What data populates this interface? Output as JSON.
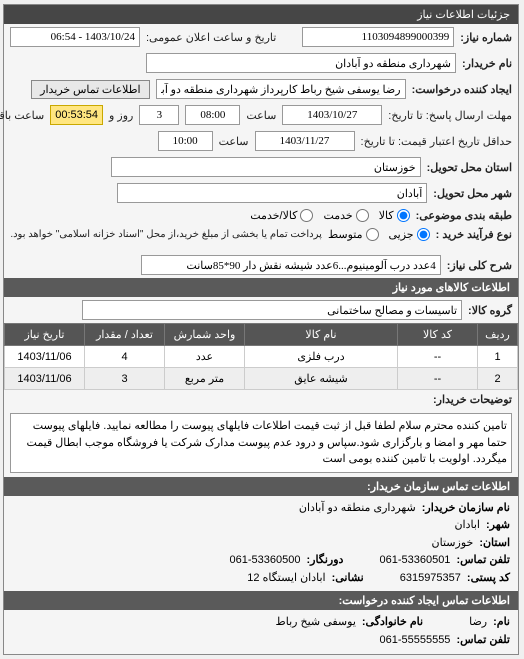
{
  "panel_title": "جزئیات اطلاعات نیاز",
  "header": {
    "need_number_label": "شماره نیاز:",
    "need_number": "1103094899000399",
    "announce_label": "تاریخ و ساعت اعلان عمومی:",
    "announce_value": "1403/10/24 - 06:54",
    "buyer_label": "نام خریدار:",
    "buyer_value": "شهرداری منطقه دو آبادان",
    "requester_label": "ایجاد کننده درخواست:",
    "requester_value": "رضا یوسفی شیخ رباط کارپرداز شهرداری منطقه دو آبادان",
    "contact_btn": "اطلاعات تماس خریدار",
    "deadline_label": "مهلت ارسال پاسخ: تا تاریخ:",
    "deadline_date": "1403/10/27",
    "time_label": "ساعت",
    "deadline_time": "08:00",
    "days_remaining": "3",
    "days_label": "روز و",
    "time_remaining": "00:53:54",
    "time_remaining_label": "ساعت باقی مانده",
    "min_deadline_label": "حداقل تاریخ اعتبار قیمت: تا تاریخ:",
    "min_deadline_date": "1403/11/27",
    "min_deadline_time": "10:00",
    "province_label": "استان محل تحویل:",
    "province_value": "خوزستان",
    "city_label": "شهر محل تحویل:",
    "city_value": "آبادان",
    "package_label": "طبقه بندی موضوعی:",
    "radio_all": "کالا",
    "radio_service": "خدمت",
    "radio_both": "کالا/خدمت",
    "process_label": "نوع فرآیند خرید :",
    "radio_cash": "جزیی",
    "radio_medium": "متوسط",
    "process_note": "پرداخت تمام یا بخشی از مبلغ خرید،از محل \"اسناد خزانه اسلامی\" خواهد بود."
  },
  "need_title_label": "شرح کلی نیاز:",
  "need_title_value": "4عدد درب آلومینیوم...6عدد شیشه نقش دار 90*85سانت",
  "goods_section": "اطلاعات کالاهای مورد نیاز",
  "group_label": "گروه کالا:",
  "group_value": "تاسیسات و مصالح ساختمانی",
  "table": {
    "columns": [
      "ردیف",
      "کد کالا",
      "نام کالا",
      "واحد شمارش",
      "تعداد / مقدار",
      "تاریخ نیاز"
    ],
    "rows": [
      [
        "1",
        "--",
        "درب فلزی",
        "عدد",
        "4",
        "1403/11/06"
      ],
      [
        "2",
        "--",
        "شیشه عایق",
        "متر مربع",
        "3",
        "1403/11/06"
      ]
    ]
  },
  "desc_label": "توضیحات خریدار:",
  "desc_text": "تامین کننده محترم سلام لطفا قبل از ثبت قیمت اطلاعات فایلهای پیوست را مطالعه نمایید. فایلهای پیوست حتما مهر و امضا و بارگزاری شود.سپاس و درود عدم پیوست مدارک شرکت یا فروشگاه موجب ابطال قیمت میگردد. اولویت با تامین کننده بومی است",
  "contact_seller": {
    "title": "اطلاعات تماس سازمان خریدار:",
    "org_label": "نام سازمان خریدار:",
    "org_value": "شهرداری منطقه دو آبادان",
    "city_label": "شهر:",
    "city_value": "ابادان",
    "province_label": "استان:",
    "province_value": "خوزستان",
    "phone_label": "تلفن تماس:",
    "phone_value": "061-53360501",
    "fax_label": "دورنگار:",
    "fax_value": "061-53360500",
    "postal_label": "کد پستی:",
    "postal_value": "6315975357",
    "address_label": "نشانی:",
    "address_value": "ابادان ایستگاه 12"
  },
  "contact_requester": {
    "title": "اطلاعات تماس ایجاد کننده درخواست:",
    "name_label": "نام:",
    "name_value": "رضا",
    "family_label": "نام خانوادگی:",
    "family_value": "یوسفی شیخ رباط",
    "phone_label": "تلفن تماس:",
    "phone_value": "061-55555555"
  }
}
